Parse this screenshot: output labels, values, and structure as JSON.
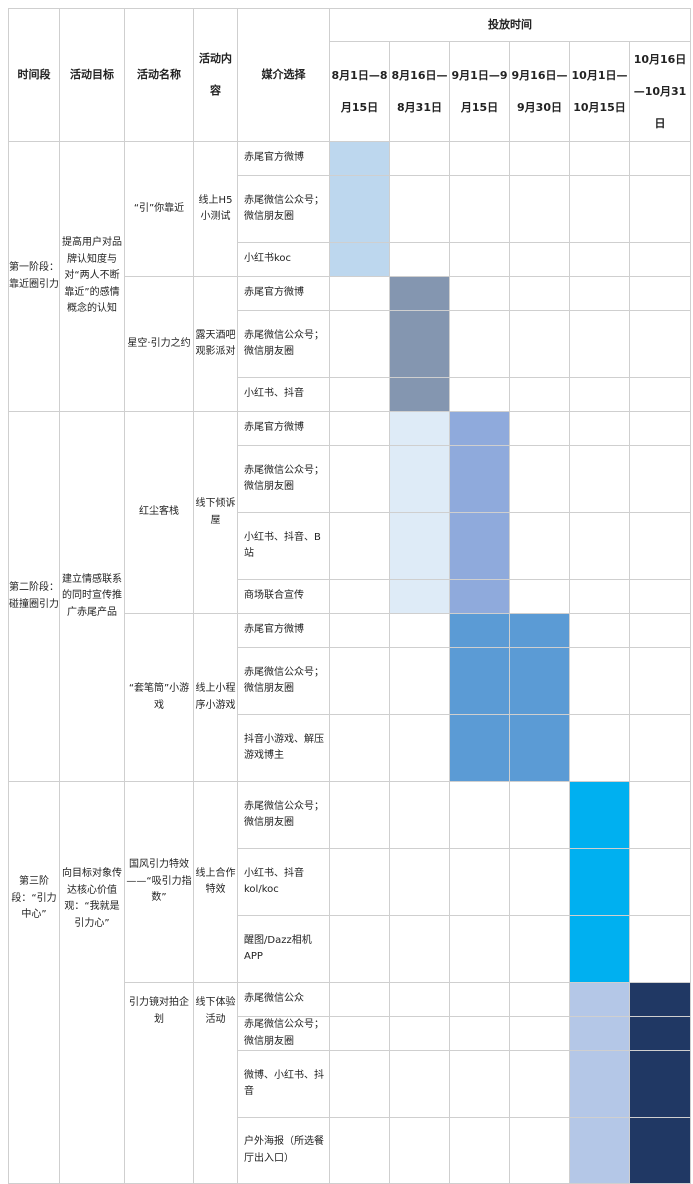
{
  "headers": {
    "time_stage": "时间段",
    "goal": "活动目标",
    "activity_name": "活动名称",
    "activity_content": "活动内容",
    "media": "媒介选择",
    "schedule": "投放时间",
    "periods": [
      "8月1日—8月15日",
      "8月16日—8月31日",
      "9月1日—9月15日",
      "9月16日—9月30日",
      "10月1日—10月15日",
      "10月16日—10月31日"
    ]
  },
  "stages": [
    {
      "name": "第一阶段：靠近圈引力",
      "goal": "提高用户对品牌认知度与对“两人不断靠近”的感情概念的认知",
      "activities": [
        {
          "name": "“引”你靠近",
          "content": "线上H5小测试",
          "media": [
            "赤尾官方微博",
            "赤尾微信公众号；微信朋友圈",
            "小红书koc"
          ]
        },
        {
          "name": "星空·引力之约",
          "content": "露天酒吧观影派对",
          "media": [
            "赤尾官方微博",
            "赤尾微信公众号；微信朋友圈",
            "小红书、抖音"
          ]
        }
      ]
    },
    {
      "name": "第二阶段：碰撞圈引力",
      "goal": "建立情感联系的同时宣传推广赤尾产品",
      "activities": [
        {
          "name": "红尘客栈",
          "content": "线下倾诉屋",
          "media": [
            "赤尾官方微博",
            "赤尾微信公众号；微信朋友圈",
            "小红书、抖音、B站",
            "商场联合宣传"
          ]
        },
        {
          "name": "“套笔筒”小游戏",
          "content": "线上小程序小游戏",
          "media": [
            "赤尾官方微博",
            "赤尾微信公众号；微信朋友圈",
            "抖音小游戏、解压游戏博主"
          ]
        }
      ]
    },
    {
      "name": "第三阶段：“引力中心”",
      "goal": "向目标对象传达核心价值观：“我就是引力心”",
      "activities": [
        {
          "name": "国风引力特效——“吸引力指数”",
          "content": "线上合作特效",
          "media": [
            "赤尾微信公众号；微信朋友圈",
            "小红书、抖音kol/koc",
            "醒图/Dazz相机APP"
          ]
        },
        {
          "name": "引力镜对拍企划",
          "content": "线下体验活动",
          "media": [
            "赤尾微信公众号；微信朋友圈",
            "微博、小红书、抖音",
            "户外海报（所选餐厅出入口）"
          ]
        }
      ]
    }
  ],
  "schedule_fills": [
    {
      "activity": "“引”你靠近",
      "periods": [
        1
      ],
      "color": "#bdd7ee"
    },
    {
      "activity": "星空·引力之约",
      "periods": [
        2
      ],
      "color": "#8496b0"
    },
    {
      "activity": "红尘客栈",
      "periods": [
        2,
        3
      ],
      "color": [
        "#deebf7",
        "#8faadc"
      ]
    },
    {
      "activity": "“套笔筒”小游戏",
      "periods": [
        3,
        4
      ],
      "color": "#5b9bd5"
    },
    {
      "activity": "国风引力特效——“吸引力指数”",
      "periods": [
        5
      ],
      "color": "#00b0f0"
    },
    {
      "activity": "引力镜对拍企划",
      "periods": [
        5,
        6
      ],
      "color": [
        "#b4c7e7",
        "#203864"
      ]
    }
  ]
}
